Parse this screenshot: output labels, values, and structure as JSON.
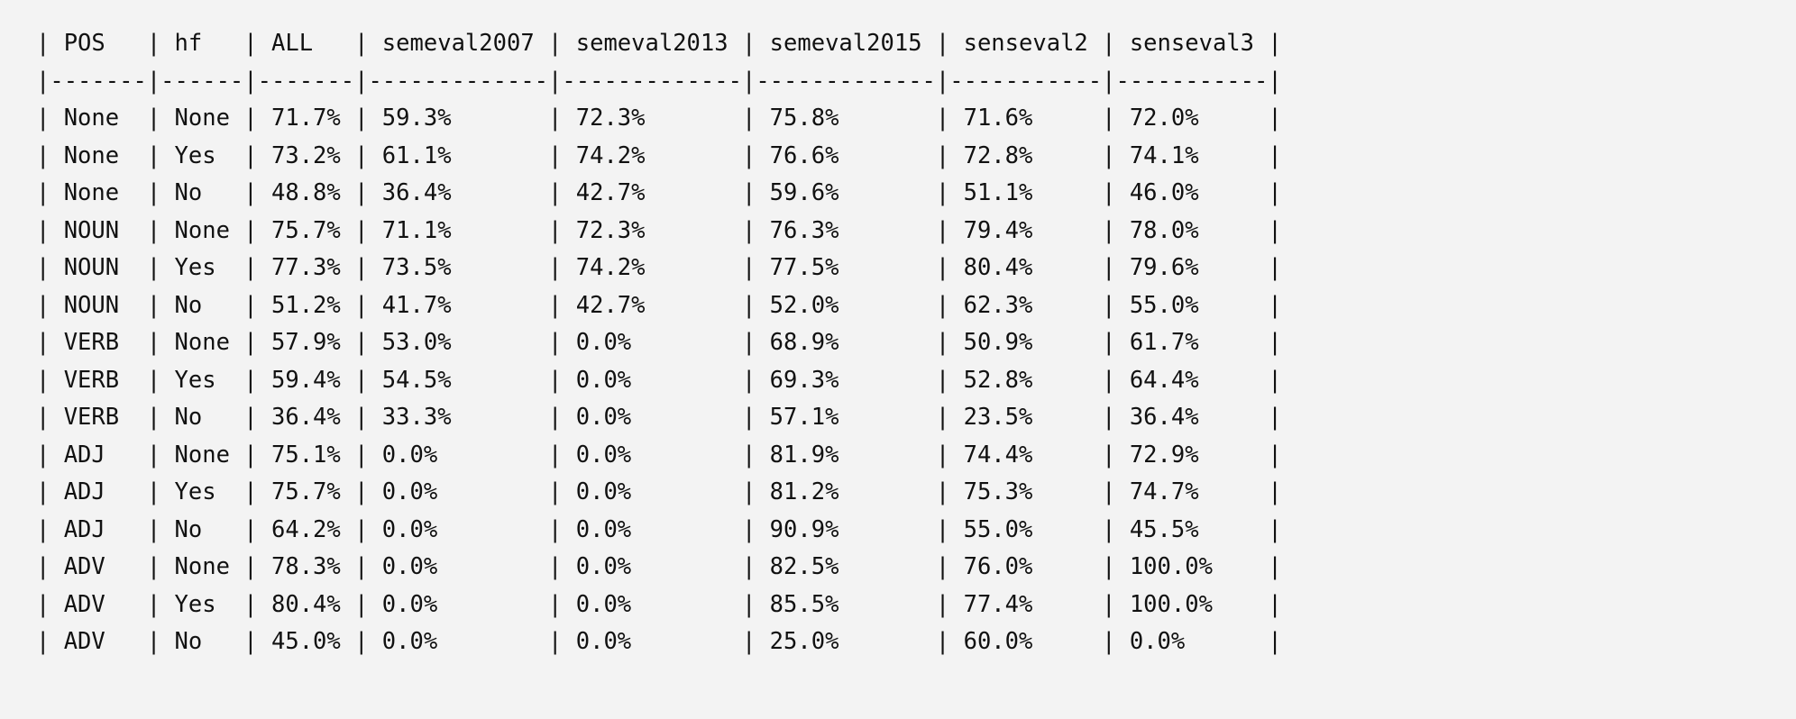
{
  "table": {
    "headers": [
      "POS",
      "hf",
      "ALL",
      "semeval2007",
      "semeval2013",
      "semeval2015",
      "senseval2",
      "senseval3"
    ],
    "rows": [
      [
        "None",
        "None",
        "71.7%",
        "59.3%",
        "72.3%",
        "75.8%",
        "71.6%",
        "72.0%"
      ],
      [
        "None",
        "Yes",
        "73.2%",
        "61.1%",
        "74.2%",
        "76.6%",
        "72.8%",
        "74.1%"
      ],
      [
        "None",
        "No",
        "48.8%",
        "36.4%",
        "42.7%",
        "59.6%",
        "51.1%",
        "46.0%"
      ],
      [
        "NOUN",
        "None",
        "75.7%",
        "71.1%",
        "72.3%",
        "76.3%",
        "79.4%",
        "78.0%"
      ],
      [
        "NOUN",
        "Yes",
        "77.3%",
        "73.5%",
        "74.2%",
        "77.5%",
        "80.4%",
        "79.6%"
      ],
      [
        "NOUN",
        "No",
        "51.2%",
        "41.7%",
        "42.7%",
        "52.0%",
        "62.3%",
        "55.0%"
      ],
      [
        "VERB",
        "None",
        "57.9%",
        "53.0%",
        "0.0%",
        "68.9%",
        "50.9%",
        "61.7%"
      ],
      [
        "VERB",
        "Yes",
        "59.4%",
        "54.5%",
        "0.0%",
        "69.3%",
        "52.8%",
        "64.4%"
      ],
      [
        "VERB",
        "No",
        "36.4%",
        "33.3%",
        "0.0%",
        "57.1%",
        "23.5%",
        "36.4%"
      ],
      [
        "ADJ",
        "None",
        "75.1%",
        "0.0%",
        "0.0%",
        "81.9%",
        "74.4%",
        "72.9%"
      ],
      [
        "ADJ",
        "Yes",
        "75.7%",
        "0.0%",
        "0.0%",
        "81.2%",
        "75.3%",
        "74.7%"
      ],
      [
        "ADJ",
        "No",
        "64.2%",
        "0.0%",
        "0.0%",
        "90.9%",
        "55.0%",
        "45.5%"
      ],
      [
        "ADV",
        "None",
        "78.3%",
        "0.0%",
        "0.0%",
        "82.5%",
        "76.0%",
        "100.0%"
      ],
      [
        "ADV",
        "Yes",
        "80.4%",
        "0.0%",
        "0.0%",
        "85.5%",
        "77.4%",
        "100.0%"
      ],
      [
        "ADV",
        "No",
        "45.0%",
        "0.0%",
        "0.0%",
        "25.0%",
        "60.0%",
        "0.0%"
      ]
    ]
  }
}
